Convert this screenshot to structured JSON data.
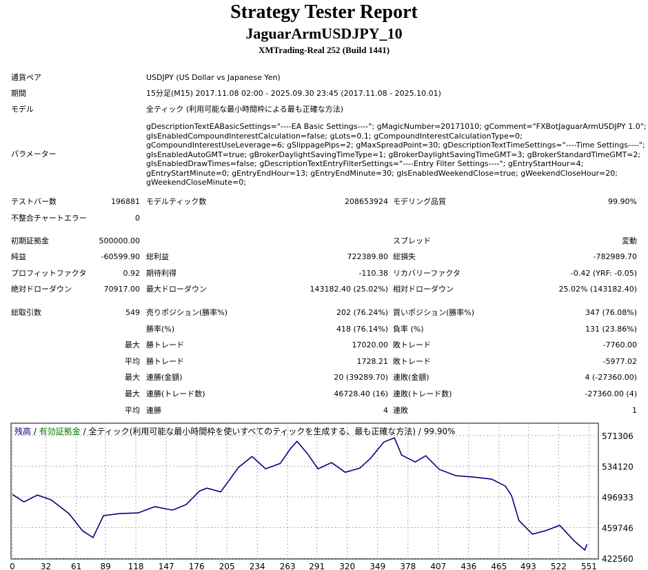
{
  "header": {
    "title": "Strategy Tester Report",
    "subtitle": "JaguarArmUSDJPY_10",
    "server": "XMTrading-Real 252 (Build 1441)"
  },
  "settings": [
    {
      "label": "通貨ペア",
      "value": [
        "USDJPY (US Dollar vs Japanese Yen)"
      ]
    },
    {
      "label": "期間",
      "value": [
        "15分足(M15) 2017.11.08 02:00 - 2025.09.30 23:45 (2017.11.08 - 2025.10.01)"
      ]
    },
    {
      "label": "モデル",
      "value": [
        "全ティック (利用可能な最小時間枠による最も正確な方法)"
      ]
    },
    {
      "label": "パラメーター",
      "value": [
        "gDescriptionTextEABasicSettings=\"----EA Basic Settings----\"; gMagicNumber=20171010; gComment=\"FXBotJaguarArmUSDJPY 1.0\";",
        "gIsEnabledCompoundInterestCalculation=false; gLots=0.1; gCompoundInterestCalculationType=0;",
        "gCompoundInterestUseLeverage=6; gSlippagePips=2; gMaxSpreadPoint=30; gDescriptionTextTimeSettings=\"----Time Settings----\";",
        "gIsEnabledAutoGMT=true; gBrokerDaylightSavingTimeType=1; gBrokerDaylightSavingTimeGMT=3; gBrokerStandardTimeGMT=2;",
        "gIsEnabledDrawTimes=false; gDescriptionTextEntryFilterSettings=\"----Entry Filter Settings----\"; gEntryStartHour=4;",
        "gEntryStartMinute=0; gEntryEndHour=13; gEntryEndMinute=30; gIsEnabledWeekendClose=true; gWeekendCloseHour=20;",
        "gWeekendCloseMinute=0;"
      ]
    }
  ],
  "stats": [
    [
      "テストバー数",
      "196881",
      "モデルティック数",
      "208653924",
      "モデリング品質",
      "99.90%"
    ],
    [
      "不整合チャートエラー",
      "0",
      null,
      null,
      null,
      null
    ],
    [
      "初期証拠金",
      "500000.00",
      null,
      null,
      "スプレッド",
      "変動"
    ],
    [
      "純益",
      "-60599.90",
      "総利益",
      "722389.80",
      "総損失",
      "-782989.70"
    ],
    [
      "プロフィットファクタ",
      "0.92",
      "期待利得",
      "-110.38",
      "リカバリーファクタ",
      "-0.42 (YRF: -0.05)"
    ],
    [
      "絶対ドローダウン",
      "70917.00",
      "最大ドローダウン",
      "143182.40 (25.02%)",
      "相対ドローダウン",
      "25.02% (143182.40)"
    ],
    [
      "総取引数",
      "549",
      "売りポジション(勝率%)",
      "202 (76.24%)",
      "買いポジション(勝率%)",
      "347 (76.08%)"
    ],
    [
      null,
      null,
      "勝率(%)",
      "418 (76.14%)",
      "負率 (%)",
      "131 (23.86%)"
    ],
    [
      null,
      "最大",
      "勝トレード",
      "17020.00",
      "敗トレード",
      "-7760.00"
    ],
    [
      null,
      "平均",
      "勝トレード",
      "1728.21",
      "敗トレード",
      "-5977.02"
    ],
    [
      null,
      "最大",
      "連勝(金額)",
      "20 (39289.70)",
      "連敗(金額)",
      "4 (-27360.00)"
    ],
    [
      null,
      "最大",
      "連勝(トレード数)",
      "46728.40 (16)",
      "連敗(トレード数)",
      "-27360.00 (4)"
    ],
    [
      null,
      "平均",
      "連勝",
      "4",
      "連敗",
      "1"
    ]
  ],
  "chart_data": {
    "type": "line",
    "legend": [
      {
        "name": "残高",
        "color": "#00008b"
      },
      {
        "name": "有効証拠金",
        "color": "#008000"
      }
    ],
    "separator": "/",
    "model_text": "全ティック(利用可能な最小時間枠を使いすべてのティックを生成する、最も正確な方法)",
    "quality": "99.90%",
    "x": [
      0,
      11,
      24,
      37,
      54,
      67,
      77,
      87,
      103,
      120,
      136,
      153,
      166,
      179,
      186,
      199,
      216,
      229,
      242,
      256,
      266,
      272,
      282,
      292,
      305,
      318,
      332,
      342,
      355,
      365,
      372,
      385,
      395,
      408,
      424,
      441,
      458,
      471,
      477,
      484,
      497,
      510,
      523,
      537,
      547,
      549
    ],
    "series": [
      {
        "name": "残高",
        "color": "#000080",
        "values": [
          500000,
          490900,
          499270,
          493430,
          476760,
          455910,
          447570,
          474260,
          476760,
          477500,
          485100,
          480930,
          487600,
          504270,
          507610,
          503000,
          532620,
          545960,
          531000,
          537620,
          555970,
          564310,
          549300,
          530950,
          538500,
          526790,
          531800,
          543460,
          563500,
          568480,
          547630,
          539290,
          546900,
          530200,
          522620,
          520950,
          518450,
          510110,
          498500,
          468420,
          451740,
          456200,
          462580,
          443410,
          432570,
          439400.1
        ]
      }
    ],
    "xlim": [
      0,
      556
    ],
    "ylim": [
      421700,
      586300
    ],
    "xticks": [
      0,
      32,
      61,
      89,
      118,
      147,
      176,
      205,
      234,
      263,
      291,
      320,
      349,
      378,
      407,
      436,
      465,
      493,
      522,
      551
    ],
    "yticks": [
      422560,
      459746,
      496933,
      534120,
      571306
    ],
    "grid": true
  }
}
